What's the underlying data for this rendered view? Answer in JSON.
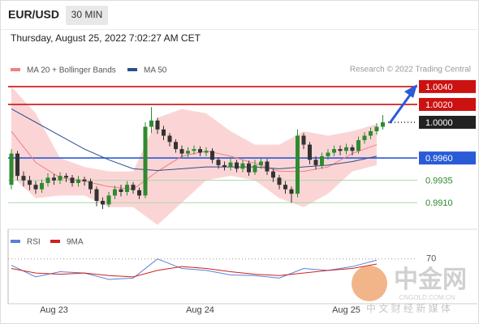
{
  "header": {
    "symbol": "EUR/USD",
    "timeframe": "30 MIN",
    "timestamp": "Thursday, August 25, 2022 7:02:27 AM CET"
  },
  "chart_data": [
    {
      "type": "candlestick",
      "source": "Research © 2022 Trading Central",
      "categories": [
        null,
        null,
        null,
        null,
        null,
        null,
        null,
        "Aug 23",
        null,
        null,
        null,
        null,
        null,
        null,
        null,
        null,
        null,
        null,
        null,
        null,
        null,
        null,
        null,
        null,
        null,
        null,
        null,
        null,
        null,
        null,
        null,
        "Aug 24",
        null,
        null,
        null,
        null,
        null,
        null,
        null,
        null,
        null,
        null,
        null,
        null,
        null,
        null,
        null,
        null,
        null,
        null,
        null,
        null,
        null,
        null,
        null,
        "Aug 25",
        null,
        null,
        null,
        null,
        null,
        null
      ],
      "open": [
        0.993,
        0.9965,
        0.994,
        0.9935,
        0.993,
        0.9925,
        0.9932,
        0.9938,
        0.9935,
        0.994,
        0.9938,
        0.9932,
        0.9936,
        0.9934,
        0.9925,
        0.9912,
        0.9908,
        0.9918,
        0.9925,
        0.9922,
        0.993,
        0.9924,
        0.9918,
        0.9995,
        1.0002,
        0.9992,
        0.9985,
        0.9978,
        0.997,
        0.9965,
        0.9968,
        0.997,
        0.9966,
        0.9968,
        0.9958,
        0.9952,
        0.995,
        0.9955,
        0.9948,
        0.9954,
        0.9944,
        0.9952,
        0.9956,
        0.9945,
        0.9938,
        0.993,
        0.9925,
        0.992,
        0.9985,
        0.9975,
        0.9958,
        0.9952,
        0.9962,
        0.9966,
        0.997,
        0.9968,
        0.9972,
        0.9968,
        0.998,
        0.9985,
        0.999,
        0.9995
      ],
      "high": [
        0.997,
        0.9968,
        0.9945,
        0.994,
        0.9934,
        0.9936,
        0.9943,
        0.9942,
        0.9944,
        0.9943,
        0.9941,
        0.994,
        0.9939,
        0.9937,
        0.9928,
        0.9916,
        0.9922,
        0.9929,
        0.993,
        0.9934,
        0.9933,
        0.9927,
        1.0,
        1.0017,
        1.0005,
        0.9996,
        0.9988,
        0.9981,
        0.9974,
        0.9972,
        0.9974,
        0.9973,
        0.9972,
        0.9971,
        0.9961,
        0.9956,
        0.996,
        0.9958,
        0.9958,
        0.9957,
        0.9958,
        0.996,
        0.9959,
        0.9948,
        0.9941,
        0.9934,
        0.9928,
        0.9992,
        0.9988,
        0.9978,
        0.9962,
        0.9966,
        0.997,
        0.9974,
        0.9974,
        0.9976,
        0.9975,
        0.9984,
        0.9989,
        0.9994,
        0.9999,
        1.0008
      ],
      "low": [
        0.9925,
        0.9935,
        0.9928,
        0.9924,
        0.992,
        0.9921,
        0.9928,
        0.993,
        0.9931,
        0.9933,
        0.9928,
        0.9928,
        0.9929,
        0.992,
        0.9906,
        0.9903,
        0.9905,
        0.9914,
        0.9917,
        0.9918,
        0.992,
        0.9914,
        0.9915,
        0.9988,
        0.9987,
        0.998,
        0.9973,
        0.9966,
        0.9961,
        0.9961,
        0.9964,
        0.9962,
        0.9962,
        0.9954,
        0.9948,
        0.9946,
        0.9946,
        0.9944,
        0.9944,
        0.994,
        0.9941,
        0.9948,
        0.9941,
        0.9933,
        0.9925,
        0.992,
        0.991,
        0.9916,
        0.997,
        0.9953,
        0.9947,
        0.9948,
        0.9958,
        0.9962,
        0.9963,
        0.9964,
        0.9963,
        0.9965,
        0.9976,
        0.9981,
        0.9986,
        0.9992
      ],
      "close": [
        0.9965,
        0.994,
        0.9935,
        0.993,
        0.9925,
        0.9932,
        0.9938,
        0.9935,
        0.994,
        0.9938,
        0.9932,
        0.9936,
        0.9934,
        0.9925,
        0.9912,
        0.9908,
        0.9918,
        0.9925,
        0.9922,
        0.993,
        0.9924,
        0.9918,
        0.9995,
        1.0002,
        0.9992,
        0.9985,
        0.9978,
        0.997,
        0.9965,
        0.9968,
        0.997,
        0.9966,
        0.9968,
        0.9958,
        0.9952,
        0.995,
        0.9955,
        0.9948,
        0.9954,
        0.9944,
        0.9952,
        0.9956,
        0.9945,
        0.9938,
        0.993,
        0.9925,
        0.992,
        0.9985,
        0.9975,
        0.9958,
        0.9952,
        0.9962,
        0.9966,
        0.997,
        0.9968,
        0.9972,
        0.9968,
        0.998,
        0.9985,
        0.999,
        0.9995,
        1.0
      ],
      "up_color": "#2e8b2e",
      "down_color": "#333333",
      "ylim": [
        0.9883,
        1.0078
      ],
      "overlays": [
        {
          "name": "MA 20 + Bollinger Bands",
          "color": "#f08080",
          "band_color": "#fbd5d5",
          "x": [
            0,
            4,
            8,
            12,
            16,
            20,
            24,
            28,
            32,
            36,
            40,
            44,
            48,
            52,
            56,
            60
          ],
          "values": [
            0.999,
            0.9955,
            0.9938,
            0.9934,
            0.9928,
            0.9925,
            0.9945,
            0.9962,
            0.9968,
            0.9962,
            0.9954,
            0.9945,
            0.9945,
            0.995,
            0.9965,
            0.9975
          ],
          "upper": [
            1.004,
            1.001,
            0.996,
            0.995,
            0.9945,
            0.9945,
            1.0005,
            1.0015,
            1.001,
            0.999,
            0.9975,
            0.9975,
            0.999,
            0.9985,
            0.999,
            0.9998
          ],
          "lower": [
            0.994,
            0.9915,
            0.9918,
            0.9918,
            0.9905,
            0.9905,
            0.9885,
            0.991,
            0.9935,
            0.994,
            0.9935,
            0.9915,
            0.9905,
            0.992,
            0.9945,
            0.9952
          ]
        },
        {
          "name": "MA 50",
          "color": "#2c4f8f",
          "x": [
            0,
            4,
            8,
            12,
            16,
            20,
            24,
            28,
            32,
            36,
            40,
            44,
            48,
            52,
            56,
            60
          ],
          "values": [
            1.0015,
            1.0,
            0.9985,
            0.997,
            0.9958,
            0.9948,
            0.9946,
            0.9948,
            0.995,
            0.995,
            0.995,
            0.9948,
            0.995,
            0.9952,
            0.9956,
            0.9962
          ]
        }
      ],
      "levels": [
        {
          "value": 1.004,
          "label": "1.0040",
          "color": "#cc1111",
          "style": "box",
          "line": "solid"
        },
        {
          "value": 1.002,
          "label": "1.0020",
          "color": "#cc1111",
          "style": "box",
          "line": "solid"
        },
        {
          "value": 1.0,
          "label": "1.0000",
          "color": "#222222",
          "style": "box",
          "line": "dotted"
        },
        {
          "value": 0.996,
          "label": "0.9960",
          "color": "#2a5bd7",
          "style": "box",
          "line": "solid"
        },
        {
          "value": 0.9935,
          "label": "0.9935",
          "color": "#2a8a2a",
          "style": "text",
          "line": "solid"
        },
        {
          "value": 0.991,
          "label": "0.9910",
          "color": "#2a8a2a",
          "style": "text",
          "line": "solid"
        }
      ]
    },
    {
      "type": "line",
      "x": [
        0,
        4,
        8,
        12,
        16,
        20,
        24,
        28,
        32,
        36,
        40,
        44,
        48,
        52,
        56,
        60
      ],
      "series": [
        {
          "name": "RSI",
          "color": "#5b7fd4",
          "values": [
            60,
            42,
            50,
            48,
            38,
            40,
            70,
            55,
            52,
            45,
            44,
            40,
            55,
            52,
            58,
            68
          ]
        },
        {
          "name": "9MA",
          "color": "#d02020",
          "values": [
            55,
            48,
            46,
            48,
            44,
            42,
            52,
            58,
            55,
            50,
            46,
            44,
            48,
            52,
            55,
            62
          ]
        }
      ],
      "ylim": [
        0,
        100
      ],
      "yticks": [
        70
      ]
    }
  ],
  "watermark": {
    "logo": "中金网",
    "url": "CNGOLD.COM.CN",
    "tagline": "中 文 财 经 新 媒 体"
  }
}
